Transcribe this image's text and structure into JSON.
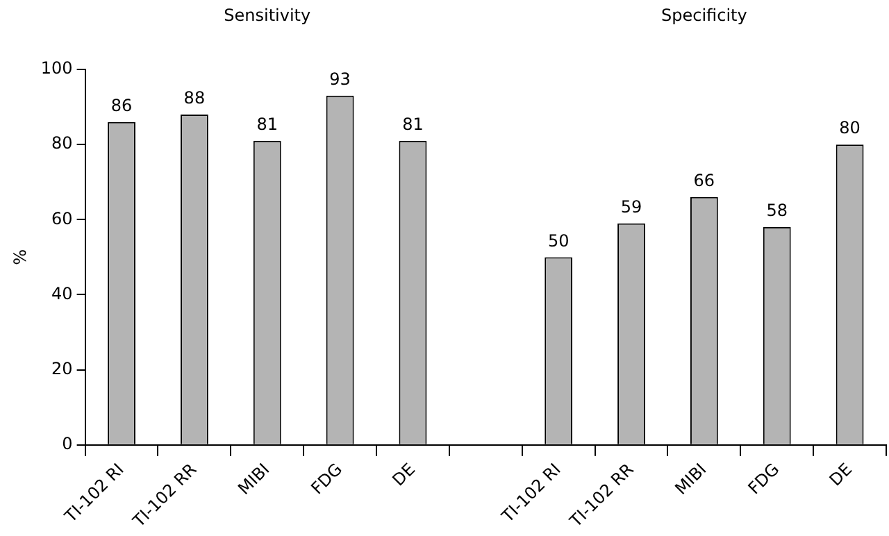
{
  "chart_data": {
    "type": "bar",
    "categories": [
      "TI-102 RI",
      "TI-102 RR",
      "MIBI",
      "FDG",
      "DE",
      null,
      "TI-102 RI",
      "TI-102 RR",
      "MIBI",
      "FDG",
      "DE"
    ],
    "values": [
      86,
      88,
      81,
      93,
      81,
      null,
      50,
      59,
      66,
      58,
      80
    ],
    "color": "#b4b4b4",
    "ylabel": "%",
    "annotations": [
      "Sensitivity",
      "Specificity"
    ],
    "ylim": [
      0,
      100
    ],
    "yticks": [
      0,
      20,
      40,
      60,
      80,
      100
    ],
    "data_labels": true,
    "grid": false,
    "legend": false
  }
}
